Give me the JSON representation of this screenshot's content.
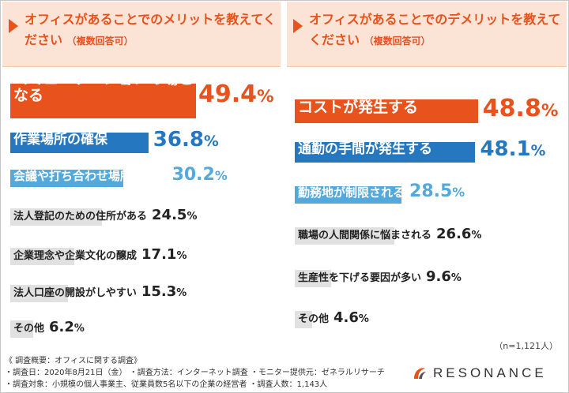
{
  "chart_data": [
    {
      "type": "bar",
      "title": "オフィスがあることでのメリットを教えてください",
      "subtitle": "（複数回答可）",
      "unit": "%",
      "categories": [
        "コミュニケーションの場となる",
        "作業場所の確保",
        "会議や打ち合わせ場所となる",
        "法人登記のための住所がある",
        "企業理念や企業文化の醸成",
        "法人口座の開設がしやすい",
        "その他"
      ],
      "values": [
        49.4,
        36.8,
        30.2,
        24.5,
        17.1,
        15.3,
        6.2
      ],
      "xlim": [
        0,
        50
      ],
      "grid": false
    },
    {
      "type": "bar",
      "title": "オフィスがあることでのデメリットを教えてください",
      "subtitle": "（複数回答可）",
      "unit": "%",
      "categories": [
        "コストが発生する",
        "通勤の手間が発生する",
        "勤務地が制限される",
        "職場の人間関係に悩まされる",
        "生産性を下げる要因が多い",
        "その他"
      ],
      "values": [
        48.8,
        48.1,
        28.5,
        26.6,
        9.6,
        4.6
      ],
      "xlim": [
        0,
        50
      ],
      "grid": false
    }
  ],
  "sample_size": "（n=1,121人）",
  "footer": {
    "heading": "《 調査概要：オフィスに関する調査》",
    "line1": "・調査日：2020年8月21日（金） ・調査方法：インターネット調査 ・モニター提供元：ゼネラルリサーチ",
    "line2": "・調査対象：小規模の個人事業主、従業員数5名以下の企業の経営者 ・調査人数：1,143人"
  },
  "logo": {
    "text": "RESONANCE",
    "icon": "resonance-logo-icon"
  },
  "colors": {
    "accent": "#e8521c",
    "header_bg": "#fbe4d5",
    "tier1": "#e8521c",
    "tier2": "#2577bf",
    "tier3": "#54a9dc",
    "tier4": "#e1e1e1",
    "text_dark": "#222222"
  }
}
